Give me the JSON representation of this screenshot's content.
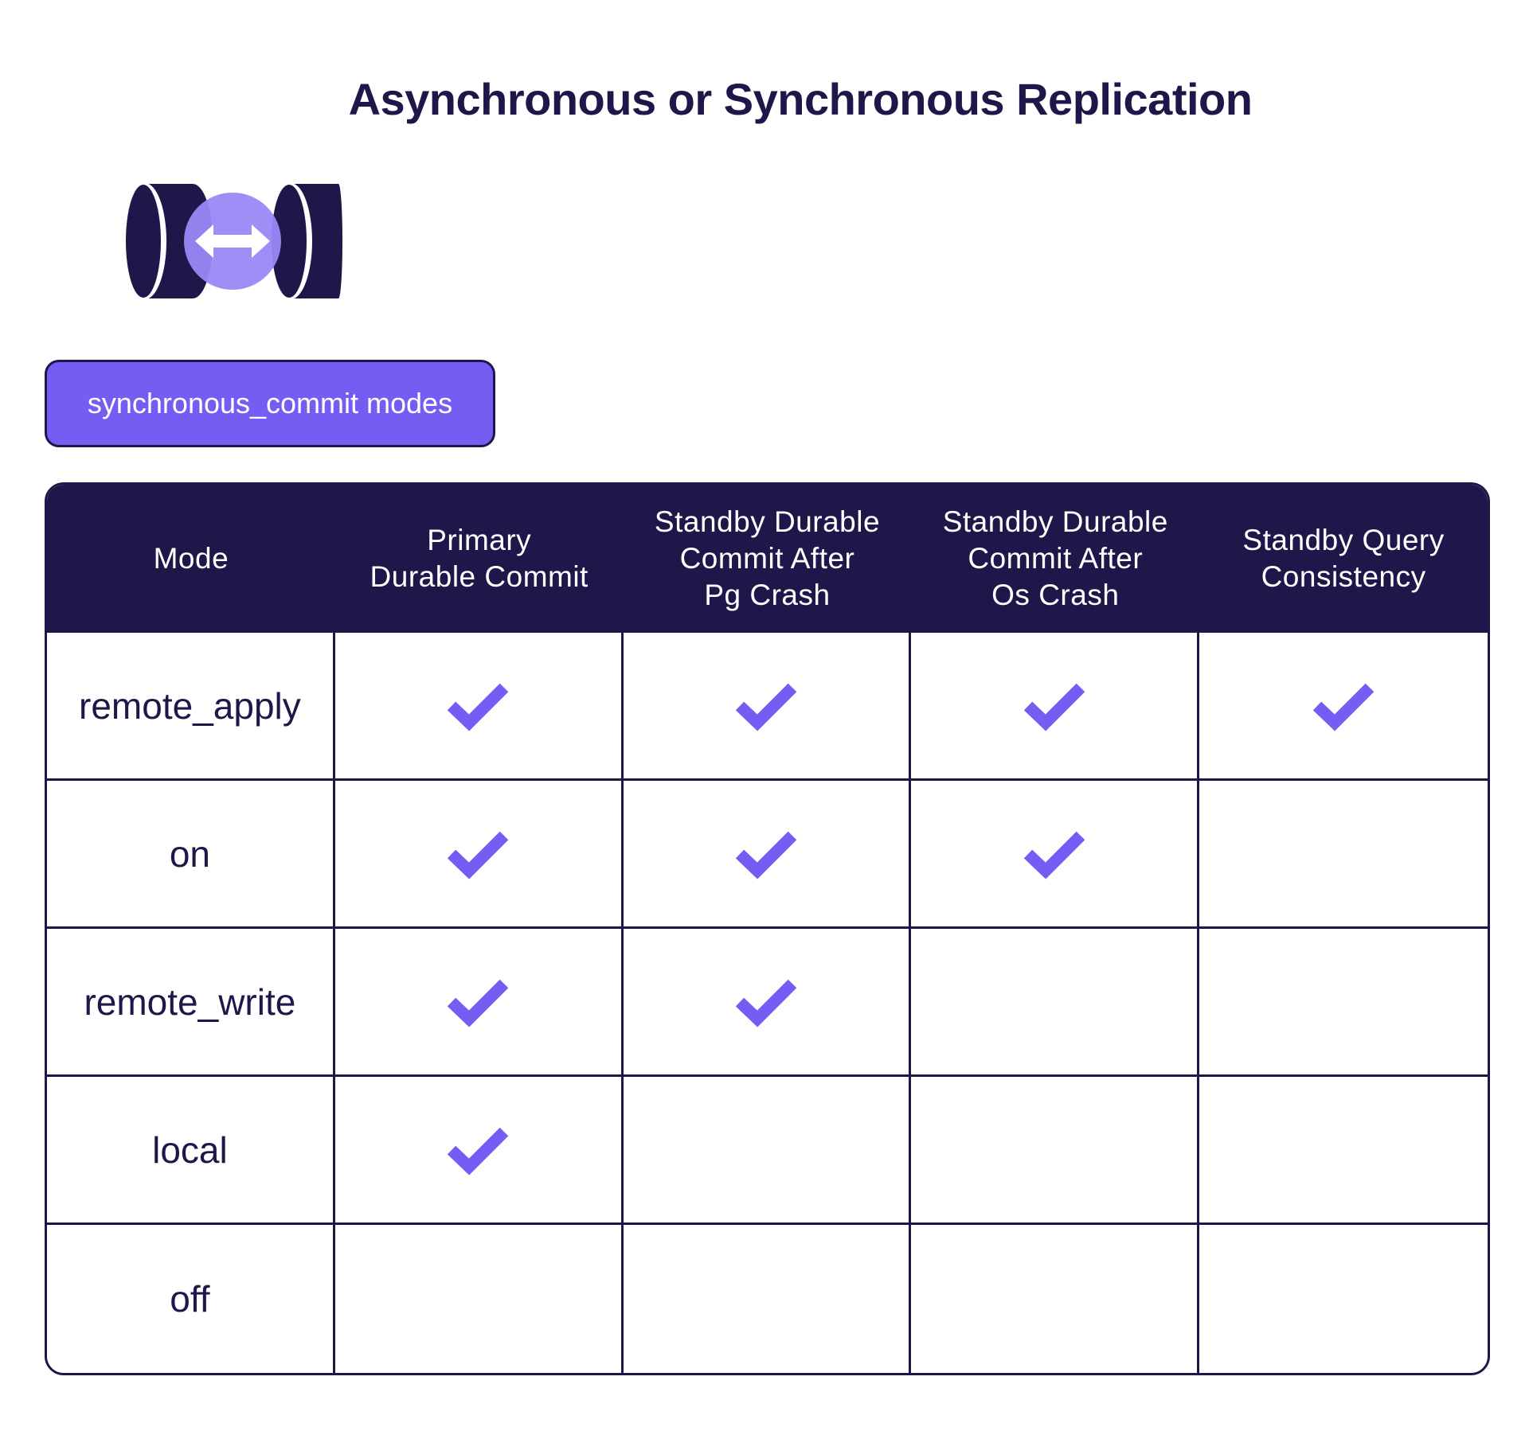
{
  "title": "Asynchronous or Synchronous Replication",
  "tag": {
    "label": "synchronous_commit modes"
  },
  "icons": {
    "logo": "database-replication-icon",
    "check": "checkmark-icon"
  },
  "colors": {
    "navy": "#1f174a",
    "purple": "#755cf3",
    "lavender": "#9b87f5",
    "white": "#ffffff"
  },
  "table": {
    "headers": [
      "Mode",
      "Primary\nDurable Commit",
      "Standby Durable\nCommit After\nPg Crash",
      "Standby Durable\nCommit After\nOs Crash",
      "Standby Query\nConsistency"
    ],
    "rows": [
      {
        "mode": "remote_apply",
        "checks": [
          true,
          true,
          true,
          true
        ]
      },
      {
        "mode": "on",
        "checks": [
          true,
          true,
          true,
          false
        ]
      },
      {
        "mode": "remote_write",
        "checks": [
          true,
          true,
          false,
          false
        ]
      },
      {
        "mode": "local",
        "checks": [
          true,
          false,
          false,
          false
        ]
      },
      {
        "mode": "off",
        "checks": [
          false,
          false,
          false,
          false
        ]
      }
    ]
  }
}
